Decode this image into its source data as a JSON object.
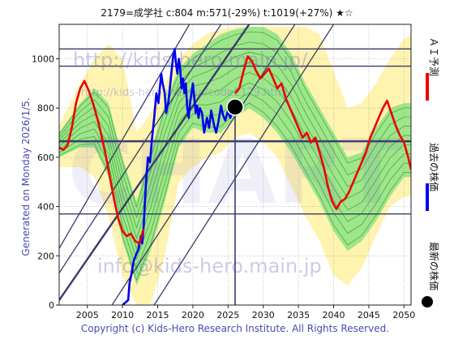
{
  "header": {
    "title": "2179=成学社 c:804 m:571(-29%) t:1019(+27%) ★☆"
  },
  "side_left": {
    "generated": "Generated on Monday 2026/1/5."
  },
  "footer": {
    "copyright": "Copyright (c) Kids-Hero Research Institute. All Rights Reserved."
  },
  "watermarks": {
    "url_top": "http://kids-hero.main.jp/",
    "url_mid": "http://kids-hero.main.jp/code2179.html",
    "email": "info@kids-hero.main.jp",
    "big": "CHART"
  },
  "legend": [
    {
      "label": "ＡＩ予測",
      "color": "#ee0000",
      "marker": "line"
    },
    {
      "label": "過去の株価",
      "color": "#0000ee",
      "marker": "line"
    },
    {
      "label": "最新の株価",
      "color": "#000000",
      "marker": "dot"
    }
  ],
  "colors": {
    "price": "#0000ee",
    "forecast": "#ee0000",
    "band_outer": "#fff3b0",
    "band_inner": "#7fe07f",
    "band_lines": "#1a9a1a",
    "hline": "#3a3a6a",
    "diag": "#3a3a6a"
  },
  "chart_data": {
    "type": "line",
    "xlim": [
      2001,
      2051
    ],
    "ylim": [
      0,
      1140
    ],
    "x_ticks": [
      2005,
      2010,
      2015,
      2020,
      2025,
      2030,
      2035,
      2040,
      2045,
      2050
    ],
    "y_ticks": [
      0,
      200,
      400,
      600,
      800,
      1000
    ],
    "grid": true,
    "latest": {
      "x": 2026.0,
      "y": 804
    },
    "horizontal_lines": [
      1040,
      970,
      665,
      370
    ],
    "series": [
      {
        "name": "過去の株価",
        "x": [
          2010.0,
          2010.4,
          2010.8,
          2011.0,
          2011.3,
          2011.6,
          2012.0,
          2012.3,
          2012.6,
          2012.8,
          2013.0,
          2013.3,
          2013.6,
          2013.9,
          2014.2,
          2014.5,
          2014.8,
          2015.1,
          2015.3,
          2015.5,
          2015.7,
          2016.0,
          2016.2,
          2016.5,
          2016.8,
          2017.0,
          2017.2,
          2017.4,
          2017.6,
          2017.8,
          2018.0,
          2018.2,
          2018.4,
          2018.6,
          2018.8,
          2019.0,
          2019.2,
          2019.4,
          2019.6,
          2019.8,
          2020.0,
          2020.2,
          2020.4,
          2020.6,
          2020.8,
          2021.0,
          2021.3,
          2021.6,
          2022.0,
          2022.3,
          2022.6,
          2023.0,
          2023.3,
          2023.6,
          2024.0,
          2024.3,
          2024.6,
          2025.0,
          2025.3,
          2025.6
        ],
        "y": [
          0,
          10,
          20,
          90,
          130,
          180,
          210,
          230,
          280,
          250,
          320,
          480,
          600,
          580,
          680,
          760,
          860,
          820,
          880,
          940,
          900,
          860,
          780,
          820,
          900,
          960,
          1010,
          1040,
          980,
          940,
          1000,
          960,
          880,
          920,
          860,
          900,
          800,
          760,
          820,
          860,
          900,
          840,
          780,
          810,
          760,
          800,
          780,
          700,
          760,
          720,
          790,
          730,
          700,
          740,
          810,
          770,
          750,
          790,
          760,
          780
        ]
      },
      {
        "name": "ＡＩ予測",
        "x": [
          2001.0,
          2001.6,
          2002.2,
          2002.8,
          2003.4,
          2004.0,
          2004.6,
          2005.2,
          2005.8,
          2006.4,
          2007.0,
          2007.6,
          2008.2,
          2008.8,
          2009.4,
          2010.0,
          2010.6,
          2011.2,
          2011.8,
          2012.4,
          2013.0,
          2026.0,
          2026.6,
          2027.2,
          2027.8,
          2028.4,
          2029.0,
          2029.6,
          2030.2,
          2030.8,
          2031.4,
          2032.0,
          2032.6,
          2033.2,
          2033.8,
          2034.4,
          2035.0,
          2035.6,
          2036.2,
          2036.8,
          2037.4,
          2038.0,
          2038.6,
          2039.2,
          2039.8,
          2040.4,
          2041.0,
          2041.6,
          2042.2,
          2042.8,
          2043.4,
          2044.0,
          2044.6,
          2045.2,
          2045.8,
          2046.4,
          2047.0,
          2047.6,
          2048.2,
          2048.8,
          2049.4,
          2050.0,
          2050.6,
          2051.0
        ],
        "y": [
          640,
          630,
          650,
          720,
          820,
          880,
          910,
          870,
          820,
          760,
          690,
          610,
          520,
          430,
          350,
          300,
          280,
          290,
          260,
          250,
          310,
          860,
          880,
          950,
          1010,
          990,
          950,
          920,
          940,
          960,
          920,
          880,
          900,
          840,
          800,
          760,
          720,
          680,
          700,
          660,
          680,
          620,
          560,
          480,
          420,
          390,
          420,
          430,
          460,
          500,
          540,
          580,
          620,
          680,
          720,
          760,
          800,
          830,
          780,
          730,
          690,
          660,
          600,
          550
        ]
      }
    ],
    "band_outer": {
      "x": [
        2001,
        2004,
        2006,
        2008,
        2010,
        2012,
        2014,
        2016,
        2018,
        2020,
        2022,
        2024,
        2026,
        2028,
        2030,
        2032,
        2034,
        2036,
        2038,
        2040,
        2042,
        2044,
        2046,
        2048,
        2050,
        2051
      ],
      "upper": [
        730,
        900,
        1000,
        1060,
        1000,
        700,
        780,
        900,
        1000,
        1060,
        1100,
        1120,
        1130,
        1130,
        1130,
        1130,
        1130,
        1130,
        1100,
        950,
        800,
        820,
        900,
        1000,
        1080,
        1100
      ],
      "lower": [
        560,
        560,
        520,
        360,
        120,
        0,
        0,
        200,
        500,
        560,
        600,
        620,
        680,
        700,
        660,
        600,
        480,
        360,
        260,
        120,
        80,
        150,
        280,
        400,
        440,
        440
      ]
    },
    "band_inner": {
      "x": [
        2001,
        2004,
        2006,
        2008,
        2010,
        2012,
        2014,
        2016,
        2018,
        2020,
        2022,
        2024,
        2026,
        2028,
        2030,
        2032,
        2034,
        2036,
        2038,
        2040,
        2042,
        2044,
        2046,
        2048,
        2050,
        2051
      ],
      "upper": [
        700,
        820,
        880,
        820,
        600,
        420,
        620,
        820,
        960,
        1020,
        1060,
        1100,
        1120,
        1130,
        1130,
        1100,
        1020,
        900,
        800,
        700,
        600,
        620,
        720,
        800,
        820,
        820
      ],
      "lower": [
        600,
        640,
        640,
        520,
        260,
        80,
        220,
        420,
        640,
        720,
        700,
        700,
        760,
        800,
        760,
        700,
        620,
        520,
        420,
        300,
        220,
        260,
        340,
        440,
        520,
        520
      ]
    },
    "diagonals": [
      {
        "x": [
          2001,
          2019.5
        ],
        "y": [
          230,
          1140
        ]
      },
      {
        "x": [
          2001,
          2024
        ],
        "y": [
          130,
          1140
        ]
      },
      {
        "x": [
          2001,
          2028
        ],
        "y": [
          20,
          1140
        ]
      },
      {
        "x": [
          2008.5,
          2034.5
        ],
        "y": [
          0,
          1140
        ]
      },
      {
        "x": [
          2014.5,
          2040
        ],
        "y": [
          0,
          1140
        ]
      }
    ]
  }
}
